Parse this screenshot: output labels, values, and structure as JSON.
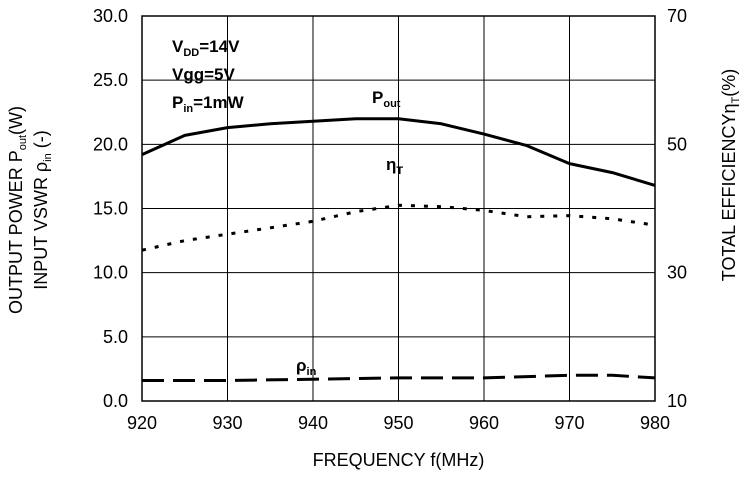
{
  "chart_data": {
    "type": "line",
    "xlabel": "FREQUENCY f(MHz)",
    "ylabel_left": {
      "line1": {
        "text": "OUTPUT POWER P",
        "sub": "out",
        "tail": "(W)"
      },
      "line2": {
        "text": "INPUT VSWR ",
        "rho": "ρ",
        "sub": "in",
        "tail": " (-)"
      }
    },
    "ylabel_right": {
      "text": "TOTAL EFFICIENCY",
      "eta": "η",
      "sub": "T",
      "tail": "(%)"
    },
    "xlim": [
      920,
      980
    ],
    "ylim_left": [
      0,
      30
    ],
    "ylim_right": [
      10,
      70
    ],
    "x_ticks": [
      "920",
      "930",
      "940",
      "950",
      "960",
      "970",
      "980"
    ],
    "y_left_ticks": [
      "0.0",
      "5.0",
      "10.0",
      "15.0",
      "20.0",
      "25.0",
      "30.0"
    ],
    "y_right_ticks": [
      "10",
      "30",
      "50",
      "70"
    ],
    "grid": "on",
    "conditions": [
      {
        "text": "V",
        "sub": "DD",
        "tail": "=14V"
      },
      {
        "text": "Vgg",
        "sub": "",
        "tail": "=5V"
      },
      {
        "text": "P",
        "sub": "in",
        "tail": "=1mW"
      }
    ],
    "series": [
      {
        "name": "P_out",
        "label": {
          "text": "P",
          "sub": "out"
        },
        "axis": "left",
        "style": "solid",
        "x": [
          920,
          925,
          930,
          935,
          940,
          945,
          950,
          955,
          960,
          965,
          970,
          975,
          980
        ],
        "y": [
          19.2,
          20.7,
          21.3,
          21.6,
          21.8,
          22.0,
          22.0,
          21.6,
          20.8,
          19.9,
          18.5,
          17.8,
          16.8
        ]
      },
      {
        "name": "eta_T",
        "label": {
          "text": "η",
          "sub": "T"
        },
        "axis": "right",
        "style": "dotted",
        "x": [
          920,
          925,
          930,
          935,
          940,
          945,
          950,
          955,
          960,
          965,
          970,
          975,
          980
        ],
        "y": [
          33.5,
          35.0,
          36.0,
          37.0,
          38.0,
          39.5,
          40.5,
          40.3,
          39.7,
          38.7,
          38.9,
          38.4,
          37.4
        ]
      },
      {
        "name": "rho_in",
        "label": {
          "text": "ρ",
          "sub": "in"
        },
        "axis": "left",
        "style": "dashed",
        "x": [
          920,
          930,
          940,
          950,
          960,
          970,
          975,
          980
        ],
        "y": [
          1.6,
          1.6,
          1.7,
          1.8,
          1.8,
          2.0,
          2.0,
          1.8
        ]
      }
    ]
  }
}
